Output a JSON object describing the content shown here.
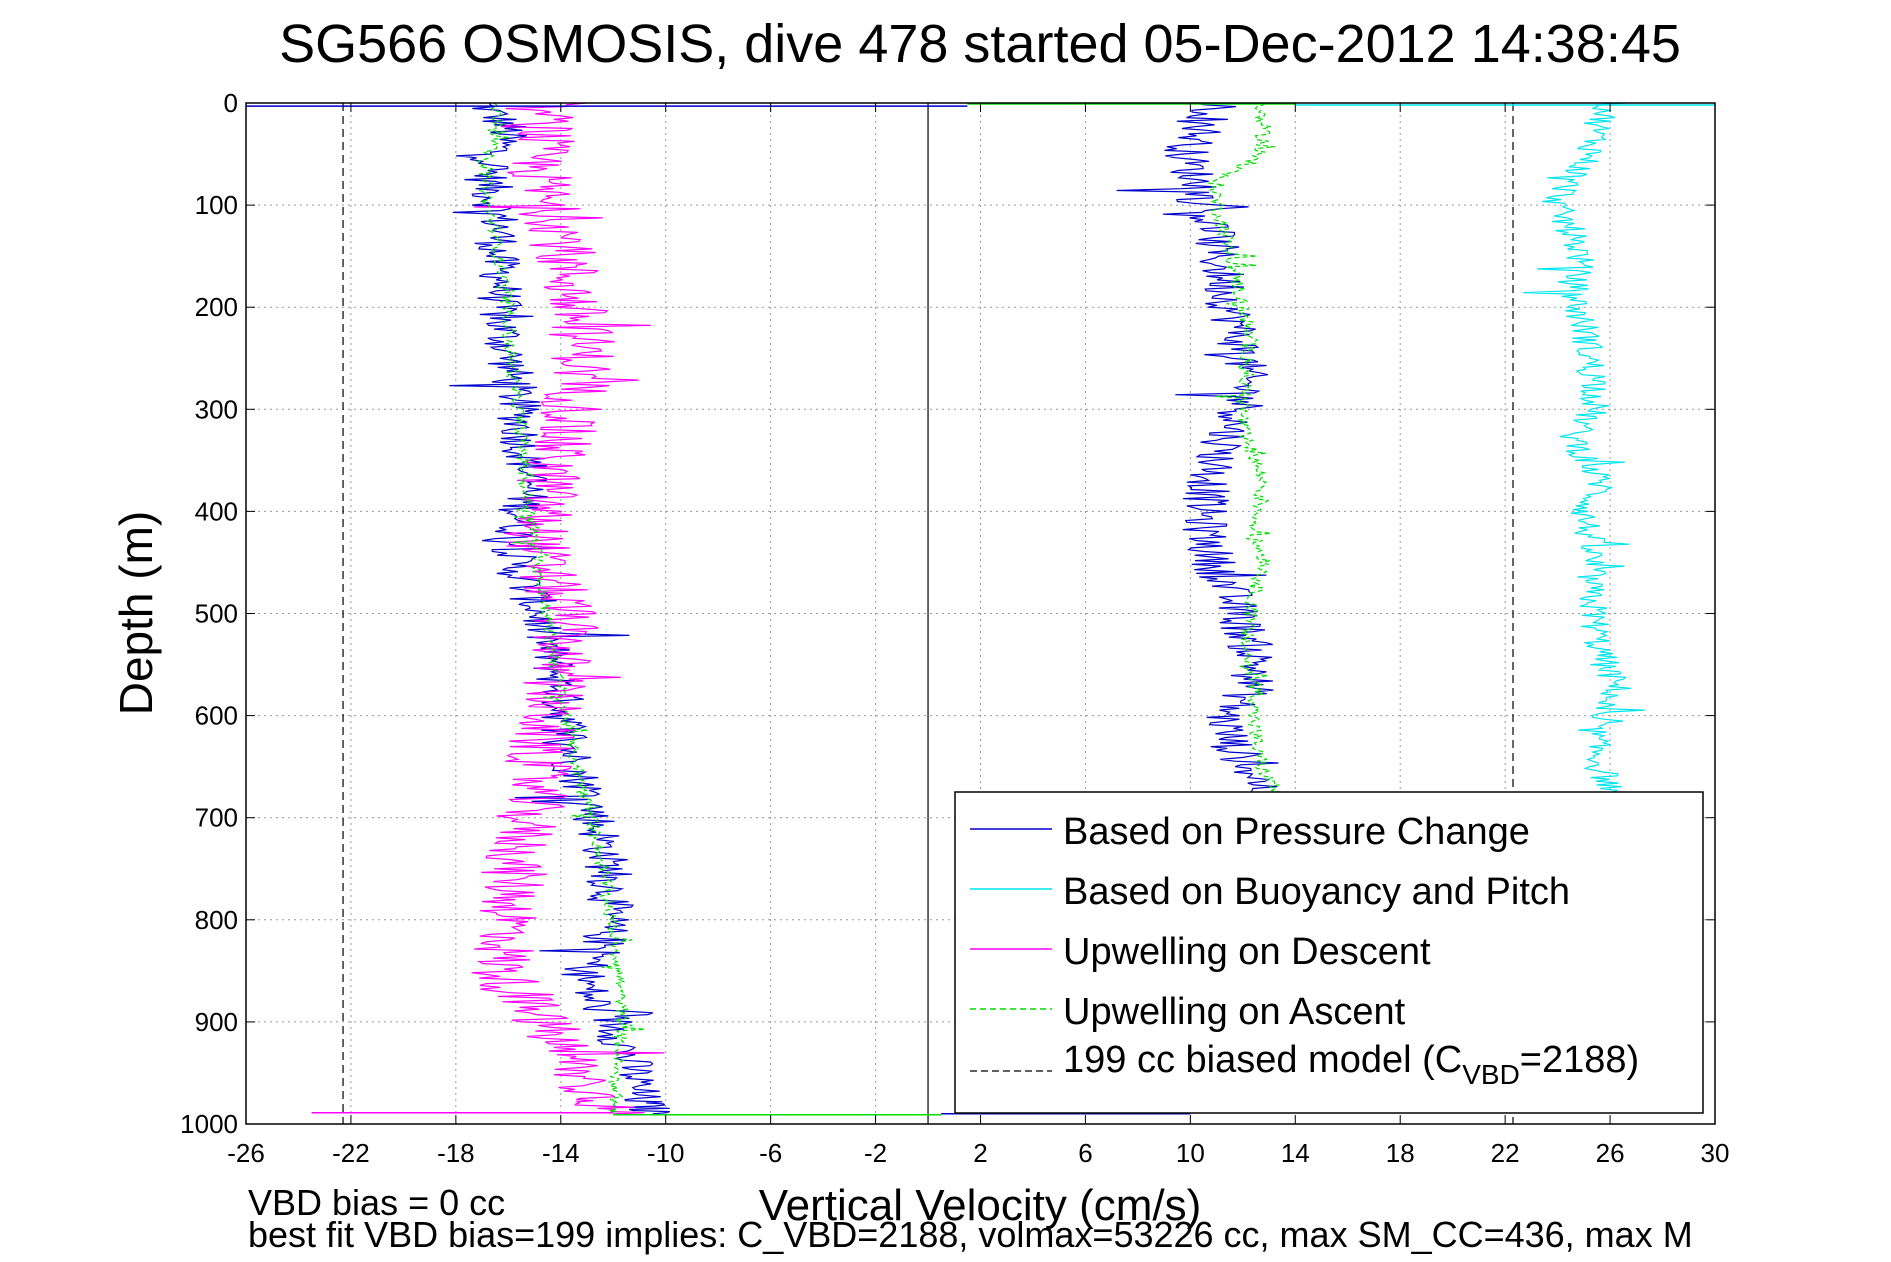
{
  "chart_data": {
    "type": "line",
    "title": "SG566 OSMOSIS, dive 478 started 05-Dec-2012 14:38:45",
    "xlabel": "Vertical Velocity (cm/s)",
    "ylabel": "Depth (m)",
    "xlim": [
      -26,
      30
    ],
    "ylim": [
      0,
      1000
    ],
    "y_reversed": true,
    "grid": true,
    "x_ticks": [
      "-26",
      "-22",
      "-18",
      "-14",
      "-10",
      "-6",
      "-2",
      "2",
      "6",
      "10",
      "14",
      "18",
      "22",
      "26",
      "30"
    ],
    "y_ticks": [
      "0",
      "100",
      "200",
      "300",
      "400",
      "500",
      "600",
      "700",
      "800",
      "900",
      "1000"
    ],
    "legend_position": "bottom-right",
    "legend": {
      "pressure": "Based on Pressure Change",
      "buoyancy": "Based on Buoyancy and Pitch",
      "descent": "Upwelling on Descent",
      "ascent": "Upwelling on Ascent",
      "model_prefix": "199 cc biased model (C",
      "model_sub": "VBD",
      "model_suffix": "=2188)"
    },
    "colors": {
      "pressure": "#0000cc",
      "buoyancy": "#00e5ee",
      "descent": "#ff00ff",
      "ascent": "#00dd00",
      "model": "#000000"
    },
    "series": [
      {
        "key": "pressure_descent",
        "legend_key": "pressure",
        "depth": [
          0,
          25,
          50,
          75,
          100,
          125,
          150,
          175,
          200,
          225,
          250,
          275,
          300,
          325,
          350,
          375,
          400,
          425,
          450,
          475,
          500,
          525,
          550,
          575,
          600,
          625,
          650,
          675,
          700,
          725,
          750,
          775,
          800,
          825,
          850,
          875,
          900,
          925,
          950,
          975,
          990
        ],
        "velocity": [
          -17,
          -16,
          -16.5,
          -16.8,
          -16.5,
          -16.3,
          -16.5,
          -16.2,
          -16.4,
          -16.2,
          -16,
          -15.8,
          -15.6,
          -15.5,
          -15.3,
          -15.2,
          -15.5,
          -15.7,
          -15.8,
          -15.3,
          -14.8,
          -14.6,
          -14.3,
          -14,
          -13.9,
          -13.6,
          -13.5,
          -13,
          -12.7,
          -12.4,
          -12.2,
          -12.1,
          -12.2,
          -12.4,
          -13.1,
          -12.9,
          -12,
          -11.6,
          -11.2,
          -11,
          -10.5
        ],
        "jitter": 0.9
      },
      {
        "key": "pressure_ascent",
        "legend_key": "pressure",
        "depth": [
          0,
          25,
          50,
          75,
          100,
          125,
          150,
          175,
          200,
          225,
          250,
          275,
          300,
          325,
          350,
          375,
          400,
          425,
          450,
          475,
          500,
          525,
          550,
          575,
          600,
          625,
          650,
          675,
          700
        ],
        "velocity": [
          11,
          10.5,
          9.8,
          10.2,
          10.4,
          10.9,
          11,
          11.3,
          11.5,
          11.8,
          12,
          12.1,
          12,
          11.4,
          11,
          10.7,
          10.5,
          10.6,
          10.9,
          11.4,
          11.8,
          12.2,
          12.5,
          12.3,
          11.3,
          11.5,
          12.2,
          12.9,
          13.3
        ],
        "jitter": 0.9
      },
      {
        "key": "buoyancy_ascent",
        "legend_key": "buoyancy",
        "depth": [
          0,
          25,
          50,
          75,
          100,
          125,
          150,
          175,
          200,
          225,
          250,
          275,
          300,
          325,
          350,
          375,
          400,
          425,
          450,
          475,
          500,
          525,
          550,
          575,
          600,
          625,
          650,
          675
        ],
        "velocity": [
          26,
          25.5,
          25.3,
          24.5,
          23.9,
          24.5,
          24.9,
          24.6,
          24.7,
          25.1,
          25.2,
          25.5,
          25.4,
          24.6,
          25.1,
          25.7,
          25,
          25.2,
          25.3,
          25.2,
          25.4,
          25.5,
          25.8,
          26.3,
          25.3,
          25.4,
          25.6,
          26.1
        ],
        "jitter": 0.6
      },
      {
        "key": "upwelling_descent",
        "legend_key": "descent",
        "depth": [
          0,
          25,
          50,
          75,
          100,
          125,
          150,
          175,
          200,
          225,
          250,
          275,
          300,
          325,
          350,
          375,
          400,
          425,
          450,
          475,
          500,
          525,
          550,
          575,
          600,
          625,
          650,
          675,
          700,
          725,
          750,
          775,
          800,
          825,
          850,
          875,
          900,
          925,
          950,
          975,
          990
        ],
        "velocity": [
          -15,
          -14.5,
          -15,
          -14.8,
          -14.6,
          -13.9,
          -13.9,
          -13.6,
          -13.5,
          -13.2,
          -13.1,
          -13.3,
          -13.5,
          -14,
          -14.3,
          -14.5,
          -14.7,
          -14.9,
          -14.8,
          -14.3,
          -13.8,
          -13.9,
          -14.1,
          -14.3,
          -14.5,
          -14.8,
          -14.9,
          -15,
          -15.3,
          -15.5,
          -15.8,
          -15.8,
          -15.9,
          -16.1,
          -16.3,
          -15.6,
          -14.7,
          -14,
          -13.3,
          -12.5,
          -12
        ],
        "jitter": 1.3
      },
      {
        "key": "upwelling_ascent_descent_branch",
        "legend_key": "ascent",
        "dashed": true,
        "depth": [
          0,
          25,
          50,
          75,
          100,
          125,
          150,
          175,
          200,
          225,
          250,
          275,
          300,
          325,
          350,
          375,
          400,
          425,
          450,
          475,
          500,
          525,
          550,
          575,
          600,
          625,
          650,
          675,
          700,
          725,
          750,
          775,
          800,
          825,
          850,
          875,
          900,
          925,
          950,
          975,
          990
        ],
        "velocity": [
          -16.5,
          -16.3,
          -16.8,
          -16.9,
          -16.8,
          -16.5,
          -16.4,
          -16.2,
          -16,
          -16,
          -15.9,
          -15.8,
          -15.6,
          -15.5,
          -15.4,
          -15.4,
          -15.2,
          -15,
          -14.9,
          -14.7,
          -14.5,
          -14.4,
          -14.2,
          -14,
          -13.8,
          -13.6,
          -13.4,
          -13.1,
          -12.8,
          -12.6,
          -12.4,
          -12.2,
          -12.1,
          -11.9,
          -11.8,
          -11.7,
          -11.7,
          -11.8,
          -11.9,
          -11.9,
          -12
        ],
        "jitter": 0.25
      },
      {
        "key": "upwelling_ascent_ascent_branch",
        "legend_key": "ascent",
        "dashed": true,
        "depth": [
          0,
          25,
          50,
          75,
          100,
          125,
          150,
          175,
          200,
          225,
          250,
          275,
          300,
          325,
          350,
          375,
          400,
          425,
          450,
          475,
          500,
          525,
          550,
          575,
          600,
          625,
          650,
          675,
          700
        ],
        "velocity": [
          12.5,
          12.8,
          12.7,
          11,
          11,
          11.3,
          11.5,
          11.8,
          12,
          12.2,
          12.2,
          12.1,
          12,
          12,
          12.5,
          12.8,
          12.6,
          12.4,
          12.9,
          12.5,
          12.3,
          12.1,
          12.2,
          12.6,
          12.4,
          12.5,
          12.7,
          13.3,
          13.7
        ],
        "jitter": 0.3
      }
    ],
    "model_lines_x": [
      -22.3,
      22.3
    ],
    "zero_line_x": 0,
    "surface_spike": {
      "blue": [
        -26,
        1.5
      ],
      "green": [
        1.5,
        14
      ],
      "cyan": [
        14,
        30
      ]
    },
    "bottom_spike": {
      "magenta": [
        -23.5,
        -12
      ],
      "green": [
        -12,
        0.5
      ],
      "blue": [
        0.5,
        10
      ]
    }
  },
  "footer": {
    "bias_line": "VBD bias = 0 cc",
    "fit_line": "best fit VBD bias=199 implies: C_VBD=2188, volmax=53226 cc, max SM_CC=436, max M"
  }
}
